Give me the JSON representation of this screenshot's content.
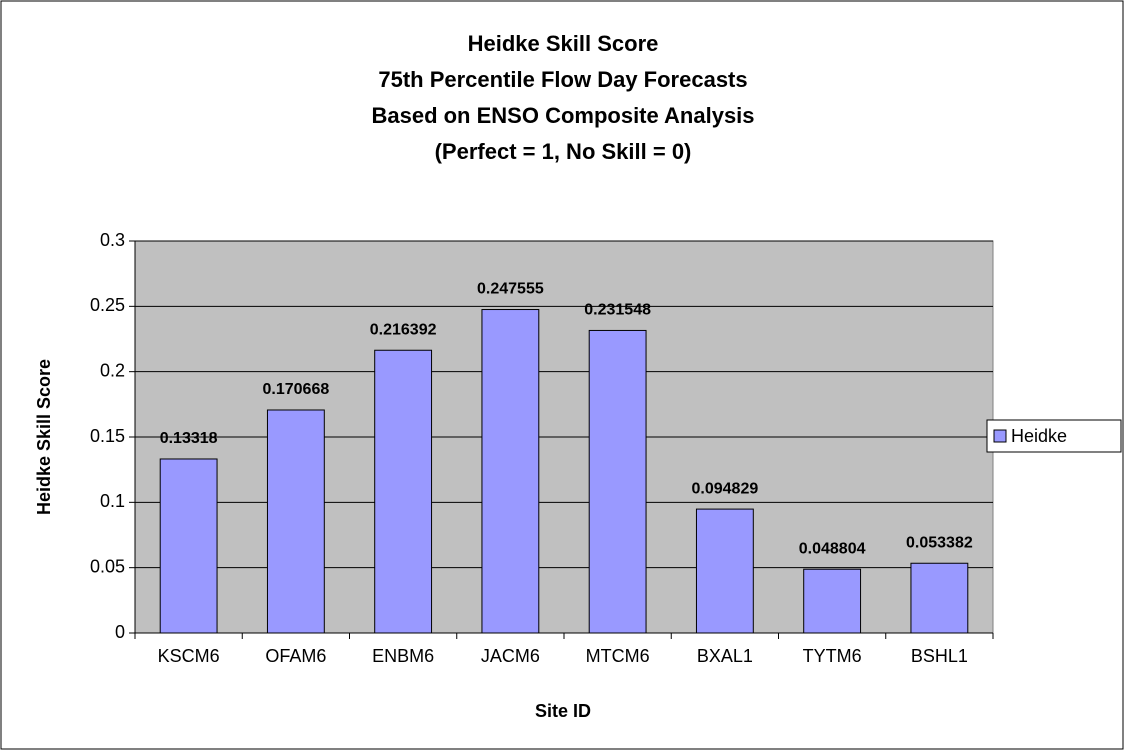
{
  "chart_data": {
    "type": "bar",
    "title": [
      "Heidke Skill Score",
      "75th Percentile Flow Day Forecasts",
      "Based on ENSO Composite Analysis",
      "(Perfect  = 1, No Skill = 0)"
    ],
    "x_label": "Site ID",
    "y_label": "Heidke Skill Score",
    "categories": [
      "KSCM6",
      "OFAM6",
      "ENBM6",
      "JACM6",
      "MTCM6",
      "BXAL1",
      "TYTM6",
      "BSHL1"
    ],
    "series": [
      {
        "name": "Heidke",
        "color": "#9999ff",
        "values": [
          0.13318,
          0.170668,
          0.216392,
          0.247555,
          0.231548,
          0.094829,
          0.048804,
          0.053382
        ]
      }
    ],
    "ylim": [
      0,
      0.3
    ],
    "yticks": [
      0,
      0.05,
      0.1,
      0.15,
      0.2,
      0.25,
      0.3
    ],
    "grid": true,
    "legend": "right",
    "plot_background": "#c0c0c0"
  }
}
